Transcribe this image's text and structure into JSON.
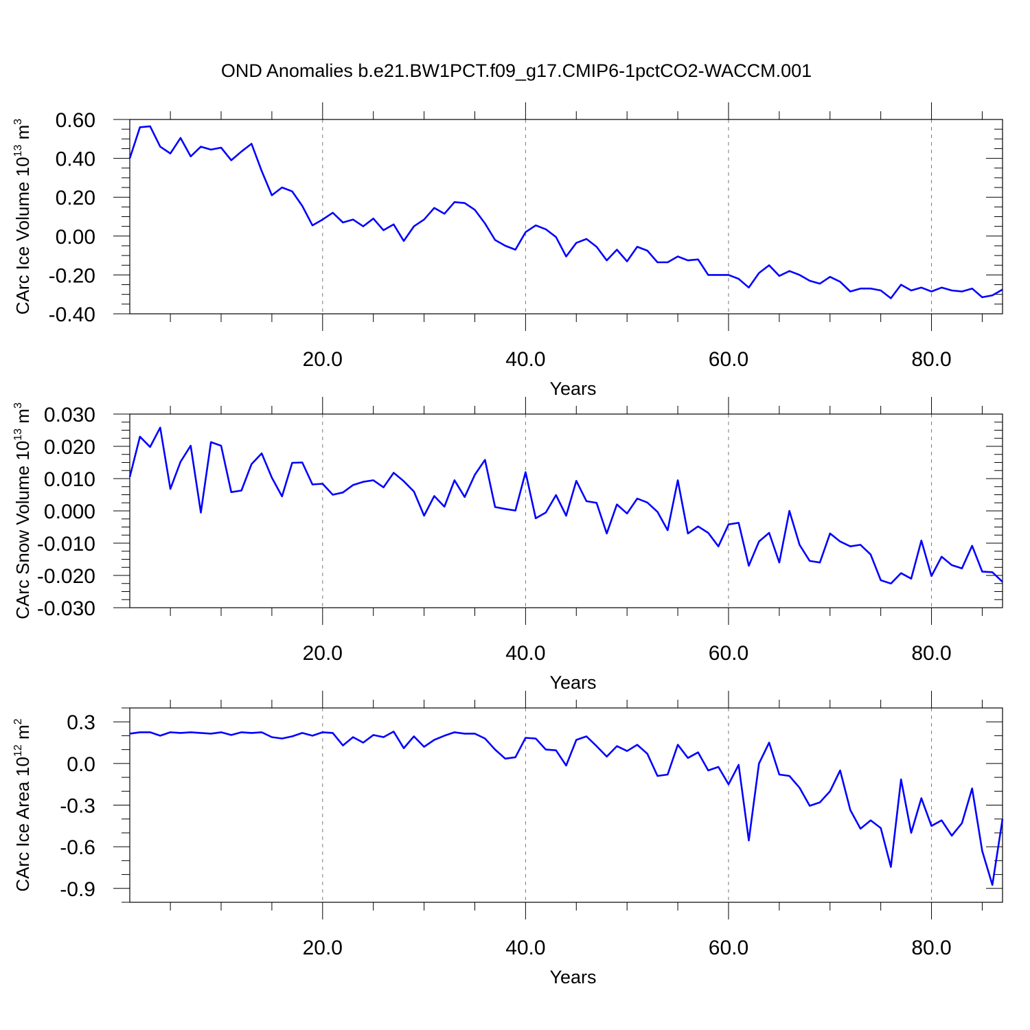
{
  "title": "OND Anomalies b.e21.BW1PCT.f09_g17.CMIP6-1pctCO2-WACCM.001",
  "line_color": "#0000ff",
  "chart_data": [
    {
      "type": "line",
      "xlabel": "Years",
      "ylabel": {
        "text": "CArc Ice Volume 10",
        "exp": "13",
        "unit": " m",
        "unit_exp": "3"
      },
      "xlim": [
        1,
        87
      ],
      "ylim": [
        -0.4,
        0.6
      ],
      "xticks": [
        20,
        40,
        60,
        80
      ],
      "xtick_labels": [
        "20.0",
        "40.0",
        "60.0",
        "80.0"
      ],
      "yticks": [
        -0.4,
        -0.2,
        0.0,
        0.2,
        0.4,
        0.6
      ],
      "ytick_labels": [
        "-0.40",
        "-0.20",
        "0.00",
        "0.20",
        "0.40",
        "0.60"
      ],
      "yminor": 0.05,
      "x_start": 1,
      "values": [
        0.4,
        0.56,
        0.565,
        0.46,
        0.425,
        0.505,
        0.41,
        0.46,
        0.445,
        0.455,
        0.39,
        0.435,
        0.475,
        0.335,
        0.21,
        0.25,
        0.23,
        0.155,
        0.055,
        0.085,
        0.12,
        0.07,
        0.085,
        0.05,
        0.09,
        0.03,
        0.06,
        -0.025,
        0.05,
        0.085,
        0.145,
        0.115,
        0.175,
        0.17,
        0.135,
        0.065,
        -0.02,
        -0.05,
        -0.07,
        0.02,
        0.055,
        0.035,
        -0.005,
        -0.105,
        -0.035,
        -0.015,
        -0.055,
        -0.125,
        -0.07,
        -0.13,
        -0.055,
        -0.075,
        -0.135,
        -0.135,
        -0.105,
        -0.125,
        -0.12,
        -0.2,
        -0.2,
        -0.2,
        -0.22,
        -0.265,
        -0.19,
        -0.15,
        -0.205,
        -0.18,
        -0.2,
        -0.23,
        -0.245,
        -0.21,
        -0.235,
        -0.285,
        -0.27,
        -0.27,
        -0.28,
        -0.32,
        -0.25,
        -0.28,
        -0.265,
        -0.285,
        -0.265,
        -0.28,
        -0.285,
        -0.27,
        -0.315,
        -0.305,
        -0.275
      ]
    },
    {
      "type": "line",
      "xlabel": "Years",
      "ylabel": {
        "text": "CArc Snow Volume 10",
        "exp": "13",
        "unit": " m",
        "unit_exp": "3"
      },
      "xlim": [
        1,
        87
      ],
      "ylim": [
        -0.03,
        0.03
      ],
      "xticks": [
        20,
        40,
        60,
        80
      ],
      "xtick_labels": [
        "20.0",
        "40.0",
        "60.0",
        "80.0"
      ],
      "yticks": [
        -0.03,
        -0.02,
        -0.01,
        0.0,
        0.01,
        0.02,
        0.03
      ],
      "ytick_labels": [
        "-0.030",
        "-0.020",
        "-0.010",
        "0.000",
        "0.010",
        "0.020",
        "0.030"
      ],
      "yminor": 0.0025,
      "x_start": 1,
      "values": [
        0.0105,
        0.023,
        0.0198,
        0.0258,
        0.0068,
        0.0152,
        0.0202,
        -0.0005,
        0.0213,
        0.0202,
        0.0058,
        0.0063,
        0.0145,
        0.0178,
        0.0103,
        0.0045,
        0.0149,
        0.015,
        0.0082,
        0.0084,
        0.005,
        0.0057,
        0.008,
        0.009,
        0.0095,
        0.0073,
        0.0118,
        0.0092,
        0.006,
        -0.0015,
        0.0046,
        0.0013,
        0.0095,
        0.0043,
        0.0112,
        0.0158,
        0.0012,
        0.0006,
        0.0001,
        0.012,
        -0.0023,
        -0.0005,
        0.0049,
        -0.0015,
        0.0093,
        0.003,
        0.0025,
        -0.007,
        0.002,
        -0.0008,
        0.0038,
        0.0026,
        -0.0003,
        -0.006,
        0.0095,
        -0.007,
        -0.0048,
        -0.0068,
        -0.011,
        -0.0042,
        -0.0037,
        -0.017,
        -0.0095,
        -0.0068,
        -0.016,
        0.0,
        -0.0105,
        -0.0155,
        -0.016,
        -0.007,
        -0.0095,
        -0.011,
        -0.0105,
        -0.0135,
        -0.0215,
        -0.0225,
        -0.0193,
        -0.021,
        -0.0092,
        -0.0202,
        -0.0142,
        -0.0168,
        -0.0178,
        -0.0108,
        -0.0188,
        -0.019,
        -0.022
      ]
    },
    {
      "type": "line",
      "xlabel": "Years",
      "ylabel": {
        "text": "CArc Ice Area 10",
        "exp": "12",
        "unit": " m",
        "unit_exp": "2"
      },
      "xlim": [
        1,
        87
      ],
      "ylim": [
        -1.0,
        0.4
      ],
      "xticks": [
        20,
        40,
        60,
        80
      ],
      "xtick_labels": [
        "20.0",
        "40.0",
        "60.0",
        "80.0"
      ],
      "yticks": [
        -0.9,
        -0.6,
        -0.3,
        0.0,
        0.3
      ],
      "ytick_labels": [
        "-0.9",
        "-0.6",
        "-0.3",
        "0.0",
        "0.3"
      ],
      "yminor": 0.1,
      "x_start": 1,
      "values": [
        0.215,
        0.225,
        0.225,
        0.2,
        0.225,
        0.22,
        0.225,
        0.22,
        0.215,
        0.225,
        0.205,
        0.225,
        0.22,
        0.225,
        0.19,
        0.18,
        0.195,
        0.22,
        0.2,
        0.225,
        0.22,
        0.13,
        0.19,
        0.15,
        0.205,
        0.19,
        0.23,
        0.11,
        0.195,
        0.12,
        0.17,
        0.2,
        0.225,
        0.215,
        0.215,
        0.18,
        0.1,
        0.035,
        0.045,
        0.185,
        0.18,
        0.1,
        0.095,
        -0.015,
        0.17,
        0.195,
        0.125,
        0.05,
        0.125,
        0.09,
        0.135,
        0.07,
        -0.09,
        -0.08,
        0.135,
        0.04,
        0.08,
        -0.05,
        -0.025,
        -0.15,
        -0.01,
        -0.555,
        0.0,
        0.15,
        -0.08,
        -0.09,
        -0.175,
        -0.305,
        -0.28,
        -0.2,
        -0.05,
        -0.335,
        -0.47,
        -0.41,
        -0.465,
        -0.745,
        -0.115,
        -0.5,
        -0.25,
        -0.45,
        -0.41,
        -0.52,
        -0.43,
        -0.18,
        -0.63,
        -0.875,
        -0.4
      ]
    }
  ]
}
